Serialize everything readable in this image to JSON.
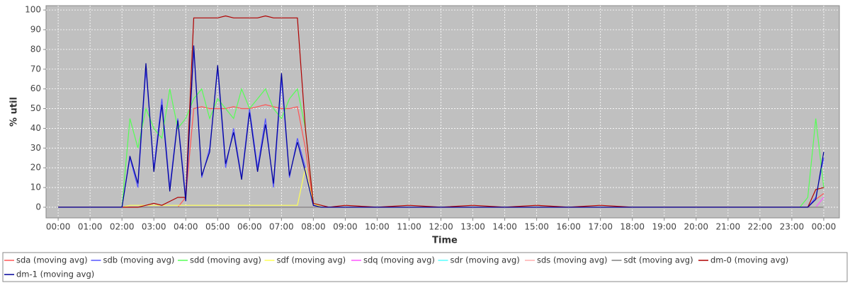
{
  "chart_data": {
    "type": "line",
    "x_label": "Time",
    "y_label": "% util",
    "grid": true,
    "legend": "bottom",
    "background": "#c0c0c0",
    "xlim": [
      -0.38,
      24.49
    ],
    "ylim": [
      -5.4,
      102.2
    ],
    "xticks": [
      {
        "value": 0,
        "label": "00:00"
      },
      {
        "value": 1,
        "label": "01:00"
      },
      {
        "value": 2,
        "label": "02:00"
      },
      {
        "value": 3,
        "label": "03:00"
      },
      {
        "value": 4,
        "label": "04:00"
      },
      {
        "value": 5,
        "label": "05:00"
      },
      {
        "value": 6,
        "label": "06:00"
      },
      {
        "value": 7,
        "label": "07:00"
      },
      {
        "value": 8,
        "label": "08:00"
      },
      {
        "value": 9,
        "label": "09:00"
      },
      {
        "value": 10,
        "label": "10:00"
      },
      {
        "value": 11,
        "label": "11:00"
      },
      {
        "value": 12,
        "label": "12:00"
      },
      {
        "value": 13,
        "label": "13:00"
      },
      {
        "value": 14,
        "label": "14:00"
      },
      {
        "value": 15,
        "label": "15:00"
      },
      {
        "value": 16,
        "label": "16:00"
      },
      {
        "value": 17,
        "label": "17:00"
      },
      {
        "value": 18,
        "label": "18:00"
      },
      {
        "value": 19,
        "label": "19:00"
      },
      {
        "value": 20,
        "label": "20:00"
      },
      {
        "value": 21,
        "label": "21:00"
      },
      {
        "value": 22,
        "label": "22:00"
      },
      {
        "value": 23,
        "label": "23:00"
      },
      {
        "value": 24,
        "label": "00:00"
      }
    ],
    "yticks": [
      0,
      10,
      20,
      30,
      40,
      50,
      60,
      70,
      80,
      90,
      100
    ],
    "x": [
      0,
      1,
      2,
      2.25,
      2.5,
      2.75,
      3,
      3.25,
      3.5,
      3.75,
      4,
      4.25,
      4.5,
      4.75,
      5,
      5.25,
      5.5,
      5.75,
      6,
      6.25,
      6.5,
      6.75,
      7,
      7.25,
      7.5,
      7.75,
      8,
      8.25,
      8.5,
      9,
      10,
      11,
      12,
      13,
      14,
      15,
      16,
      17,
      18,
      19,
      20,
      21,
      22,
      23,
      23.25,
      23.5,
      23.75,
      24
    ],
    "series": [
      {
        "name": "sda (moving avg)",
        "color": "#ff5555",
        "values": [
          0,
          0,
          0,
          0,
          0,
          0,
          0,
          0,
          0,
          0,
          5,
          50,
          51,
          50,
          50,
          50,
          51,
          50,
          50,
          51,
          52,
          51,
          50,
          50,
          51,
          30,
          1,
          0,
          0,
          0,
          0,
          0,
          0,
          0,
          0,
          0,
          0,
          0,
          0,
          0,
          0,
          0,
          0,
          0,
          0,
          0,
          4,
          7
        ]
      },
      {
        "name": "sdb (moving avg)",
        "color": "#5555ff",
        "values": [
          0,
          0,
          0,
          25,
          10,
          70,
          20,
          55,
          10,
          45,
          5,
          80,
          15,
          30,
          70,
          20,
          40,
          15,
          50,
          20,
          45,
          10,
          65,
          15,
          35,
          20,
          1,
          0,
          0,
          0,
          0,
          0,
          0,
          0,
          0,
          0,
          0,
          0,
          0,
          0,
          0,
          0,
          0,
          0,
          0,
          0,
          5,
          25
        ]
      },
      {
        "name": "sdd (moving avg)",
        "color": "#55ff55",
        "values": [
          0,
          0,
          0,
          45,
          30,
          50,
          40,
          35,
          60,
          40,
          45,
          55,
          60,
          45,
          55,
          50,
          45,
          60,
          50,
          55,
          60,
          50,
          45,
          55,
          60,
          40,
          2,
          0,
          0,
          0,
          0,
          0,
          0,
          0,
          0,
          0,
          0,
          0,
          0,
          0,
          0,
          0,
          0,
          0,
          0,
          5,
          45,
          10
        ]
      },
      {
        "name": "sdf (moving avg)",
        "color": "#ffff55",
        "values": [
          0,
          0,
          0,
          1,
          1,
          1,
          1,
          1,
          1,
          1,
          1,
          1,
          1,
          1,
          1,
          1,
          1,
          1,
          1,
          1,
          1,
          1,
          1,
          1,
          1,
          20,
          2,
          0,
          0,
          0,
          0,
          0,
          0,
          0,
          0,
          0,
          0,
          0,
          0,
          0,
          0,
          0,
          0,
          0,
          0,
          0,
          0,
          0
        ]
      },
      {
        "name": "sdq (moving avg)",
        "color": "#ff55ff",
        "values": [
          0,
          0,
          0,
          0,
          0,
          0,
          0,
          0,
          0,
          0,
          0,
          0,
          0,
          0,
          0,
          0,
          0,
          0,
          0,
          0,
          0,
          0,
          0,
          0,
          0,
          0,
          0,
          0,
          0,
          0,
          0,
          0,
          0,
          0,
          0,
          0,
          0,
          0,
          0,
          0,
          0,
          0,
          0,
          0,
          0,
          0,
          0,
          5
        ]
      },
      {
        "name": "sdr (moving avg)",
        "color": "#55ffff",
        "values": [
          0,
          0,
          0,
          0,
          0,
          0,
          0,
          0,
          0,
          0,
          0,
          0,
          0,
          0,
          0,
          0,
          0,
          0,
          0,
          0,
          0,
          0,
          0,
          0,
          0,
          0,
          0,
          0,
          0,
          0,
          0,
          0,
          0,
          0,
          0,
          0,
          0,
          0,
          0,
          0,
          0,
          0,
          0,
          0,
          0,
          0,
          0,
          0
        ]
      },
      {
        "name": "sds (moving avg)",
        "color": "#ffafaf",
        "values": [
          0,
          0,
          0,
          0,
          0,
          0,
          0,
          0,
          0,
          0,
          0,
          0,
          0,
          0,
          0,
          0,
          0,
          0,
          0,
          0,
          0,
          0,
          0,
          0,
          0,
          0,
          0,
          0,
          0,
          0,
          0,
          0,
          0,
          0,
          0,
          0,
          0,
          0,
          0,
          0,
          0,
          0,
          0,
          0,
          0,
          0,
          0,
          0
        ]
      },
      {
        "name": "sdt (moving avg)",
        "color": "#808080",
        "values": [
          0,
          0,
          0,
          0,
          0,
          0,
          0,
          0,
          0,
          0,
          0,
          0,
          0,
          0,
          0,
          0,
          0,
          0,
          0,
          0,
          0,
          0,
          0,
          0,
          0,
          0,
          0,
          0,
          0,
          0,
          0,
          0,
          0,
          0,
          0,
          0,
          0,
          0,
          0,
          0,
          0,
          0,
          0,
          0,
          0,
          0,
          0,
          0
        ]
      },
      {
        "name": "dm-0 (moving avg)",
        "color": "#b00000",
        "values": [
          0,
          0,
          0,
          0,
          0,
          1,
          2,
          1,
          3,
          5,
          5,
          96,
          96,
          96,
          96,
          97,
          96,
          96,
          96,
          96,
          97,
          96,
          96,
          96,
          96,
          40,
          2,
          1,
          0,
          1,
          0,
          1,
          0,
          1,
          0,
          1,
          0,
          1,
          0,
          0,
          0,
          0,
          0,
          0,
          0,
          0,
          9,
          10
        ]
      },
      {
        "name": "dm-1 (moving avg)",
        "color": "#000099",
        "values": [
          0,
          0,
          0,
          26,
          12,
          73,
          18,
          52,
          8,
          44,
          3,
          82,
          16,
          28,
          72,
          22,
          38,
          14,
          48,
          18,
          42,
          12,
          68,
          16,
          33,
          18,
          1,
          0,
          0,
          0,
          0,
          0,
          0,
          0,
          0,
          0,
          0,
          0,
          0,
          0,
          0,
          0,
          0,
          0,
          0,
          0,
          4,
          28
        ]
      }
    ]
  }
}
